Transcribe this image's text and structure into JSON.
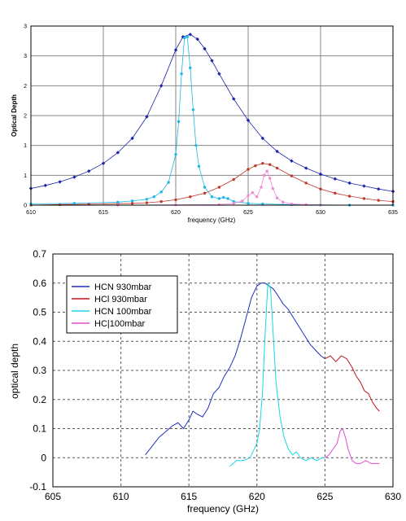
{
  "colors": {
    "hcn_930": "#1f2fbf",
    "hcl_930": "#c0141c",
    "hcn_100": "#19d7e6",
    "hcl_100": "#e24bd0",
    "top_hcn_930": "#1a24a8",
    "top_hcl_930": "#c0392b",
    "top_hcn_100": "#1fb7e6",
    "top_hcl_100": "#f08ad8"
  },
  "chart_data": [
    {
      "type": "line",
      "title": "",
      "xlabel": "frequency (GHz)",
      "ylabel": "Optical Depth",
      "xlim": [
        610,
        635
      ],
      "ylim": [
        0,
        3
      ],
      "xticks": [
        610,
        615,
        620,
        625,
        630,
        635
      ],
      "xtick_labels": [
        "610",
        "615",
        "620",
        "625",
        "630",
        "635"
      ],
      "yticks": [
        0,
        0.5,
        1,
        1.5,
        2,
        2.5,
        3
      ],
      "ytick_labels": [
        "0",
        "1",
        "1",
        "2",
        "2",
        "3",
        "3"
      ],
      "grid": true,
      "legend": "none",
      "series": [
        {
          "color_key": "top_hcn_930",
          "marker": "diamond",
          "x": [
            610,
            611,
            612,
            613,
            614,
            615,
            616,
            617,
            618,
            619,
            620,
            620.5,
            621,
            621.5,
            622,
            622.5,
            623,
            624,
            625,
            626,
            627,
            628,
            629,
            630,
            631,
            632,
            633,
            634,
            635
          ],
          "values": [
            0.28,
            0.33,
            0.39,
            0.47,
            0.57,
            0.7,
            0.88,
            1.12,
            1.48,
            2.0,
            2.6,
            2.82,
            2.86,
            2.78,
            2.62,
            2.42,
            2.2,
            1.78,
            1.42,
            1.12,
            0.9,
            0.74,
            0.62,
            0.52,
            0.44,
            0.37,
            0.32,
            0.27,
            0.23
          ]
        },
        {
          "color_key": "top_hcl_930",
          "marker": "dot",
          "x": [
            610,
            612,
            614,
            616,
            617,
            618,
            619,
            620,
            621,
            622,
            623,
            624,
            625,
            625.5,
            626,
            626.5,
            627,
            628,
            629,
            630,
            631,
            632,
            633,
            634,
            635
          ],
          "values": [
            0.0,
            0.01,
            0.015,
            0.025,
            0.03,
            0.04,
            0.06,
            0.09,
            0.14,
            0.2,
            0.3,
            0.43,
            0.6,
            0.66,
            0.7,
            0.68,
            0.62,
            0.49,
            0.37,
            0.27,
            0.2,
            0.15,
            0.11,
            0.08,
            0.06
          ]
        },
        {
          "color_key": "top_hcn_100",
          "marker": "dot",
          "x": [
            610,
            613,
            616,
            617,
            618,
            618.5,
            619,
            619.5,
            620,
            620.2,
            620.4,
            620.6,
            620.8,
            621,
            621.2,
            621.4,
            621.6,
            622,
            622.5,
            623,
            623.3,
            623.6,
            624,
            625,
            626,
            628,
            630,
            632,
            635
          ],
          "values": [
            0.02,
            0.03,
            0.05,
            0.07,
            0.1,
            0.14,
            0.22,
            0.38,
            0.85,
            1.4,
            2.2,
            2.8,
            2.82,
            2.3,
            1.6,
            1.0,
            0.65,
            0.3,
            0.14,
            0.11,
            0.13,
            0.11,
            0.06,
            0.03,
            0.02,
            0.01,
            0.005,
            0.0,
            0.0
          ]
        },
        {
          "color_key": "top_hcl_100",
          "marker": "dot",
          "x": [
            616,
            620,
            623,
            624,
            624.6,
            625,
            625.3,
            625.6,
            625.9,
            626.1,
            626.3,
            626.5,
            626.7,
            627,
            627.4,
            628,
            629,
            630
          ],
          "values": [
            0.0,
            0.005,
            0.01,
            0.03,
            0.07,
            0.16,
            0.21,
            0.14,
            0.3,
            0.5,
            0.57,
            0.45,
            0.28,
            0.12,
            0.05,
            0.02,
            0.01,
            0.0
          ]
        }
      ]
    },
    {
      "type": "line",
      "title": "",
      "xlabel": "frequency (GHz)",
      "ylabel": "optical depth",
      "xlim": [
        605,
        630
      ],
      "ylim": [
        -0.1,
        0.7
      ],
      "xticks": [
        605,
        610,
        615,
        620,
        625,
        630
      ],
      "xtick_labels": [
        "605",
        "610",
        "615",
        "620",
        "625",
        "630"
      ],
      "yticks": [
        -0.1,
        0,
        0.1,
        0.2,
        0.3,
        0.4,
        0.5,
        0.6,
        0.7
      ],
      "ytick_labels": [
        "-0.1",
        "0",
        "0.1",
        "0.2",
        "0.3",
        "0.4",
        "0.5",
        "0.6",
        "0.7"
      ],
      "grid": true,
      "legend": "top-left",
      "series": [
        {
          "name": "HCN 930mbar",
          "color_key": "hcn_930",
          "x": [
            611.8,
            612.3,
            612.8,
            613.3,
            613.8,
            614.2,
            614.6,
            615.0,
            615.3,
            615.6,
            616.0,
            616.4,
            616.8,
            617.2,
            617.6,
            618.0,
            618.4,
            618.8,
            619.2,
            619.6,
            620.0,
            620.3,
            620.6,
            620.9,
            621.2,
            621.5,
            621.9,
            622.3,
            622.7,
            623.1,
            623.5,
            623.9,
            624.3,
            624.7,
            625.0
          ],
          "values": [
            0.01,
            0.04,
            0.07,
            0.09,
            0.11,
            0.12,
            0.1,
            0.13,
            0.16,
            0.15,
            0.14,
            0.17,
            0.22,
            0.24,
            0.28,
            0.31,
            0.35,
            0.41,
            0.48,
            0.55,
            0.59,
            0.6,
            0.6,
            0.59,
            0.58,
            0.56,
            0.53,
            0.51,
            0.48,
            0.45,
            0.42,
            0.39,
            0.37,
            0.35,
            0.34
          ]
        },
        {
          "name": "HCl 930mbar",
          "color_key": "hcl_930",
          "x": [
            625.0,
            625.4,
            625.8,
            626.2,
            626.6,
            627.0,
            627.3,
            627.6,
            627.9,
            628.2,
            628.5,
            628.8,
            629.0
          ],
          "values": [
            0.34,
            0.35,
            0.33,
            0.35,
            0.34,
            0.31,
            0.28,
            0.26,
            0.23,
            0.22,
            0.19,
            0.17,
            0.16
          ]
        },
        {
          "name": "HCN 100mbar",
          "color_key": "hcn_100",
          "x": [
            618.0,
            618.5,
            619.0,
            619.5,
            620.0,
            620.2,
            620.4,
            620.6,
            620.8,
            621.0,
            621.2,
            621.4,
            621.7,
            622.0,
            622.3,
            622.6,
            622.9,
            623.2,
            623.6,
            624.0,
            624.4,
            624.8,
            625.0
          ],
          "values": [
            -0.03,
            -0.01,
            -0.01,
            0.0,
            0.05,
            0.1,
            0.22,
            0.42,
            0.6,
            0.58,
            0.42,
            0.26,
            0.14,
            0.07,
            0.03,
            0.01,
            0.02,
            0.0,
            -0.01,
            0.0,
            -0.01,
            0.0,
            0.0
          ]
        },
        {
          "name": "HC|100mbar",
          "color_key": "hcl_100",
          "x": [
            625.0,
            625.3,
            625.6,
            625.9,
            626.1,
            626.3,
            626.5,
            626.7,
            627.0,
            627.3,
            627.6,
            628.0,
            628.4,
            628.8,
            629.0
          ],
          "values": [
            0.0,
            0.01,
            0.03,
            0.05,
            0.09,
            0.1,
            0.07,
            0.03,
            -0.01,
            -0.02,
            -0.02,
            -0.01,
            -0.02,
            -0.02,
            -0.02
          ]
        }
      ]
    }
  ]
}
